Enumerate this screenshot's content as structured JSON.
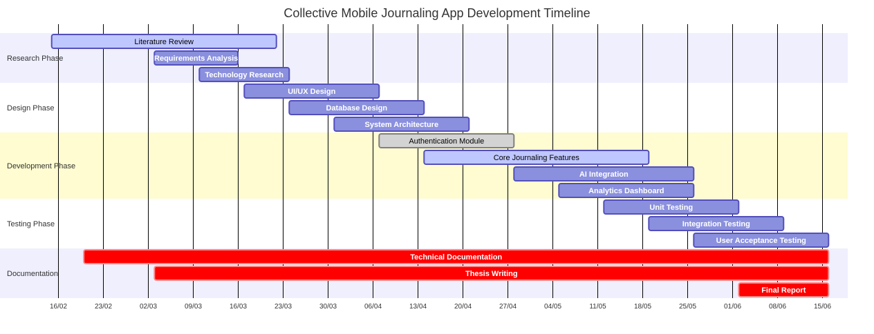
{
  "title": "Collective Mobile Journaling App Development Timeline",
  "chart_data": {
    "type": "gantt",
    "title": "Collective Mobile Journaling App Development Timeline",
    "x_ticks": [
      "16/02",
      "23/02",
      "02/03",
      "09/03",
      "16/03",
      "23/03",
      "30/03",
      "06/04",
      "13/04",
      "20/04",
      "27/04",
      "04/05",
      "11/05",
      "18/05",
      "25/05",
      "01/06",
      "08/06",
      "15/06"
    ],
    "sections": [
      {
        "name": "Research Phase",
        "tasks": [
          {
            "name": "Literature Review",
            "start": "15/02",
            "end": "22/03",
            "status": "done"
          },
          {
            "name": "Requirements Analysis",
            "start": "03/03",
            "end": "16/03",
            "status": "active"
          },
          {
            "name": "Technology Research",
            "start": "10/03",
            "end": "24/03",
            "status": "active"
          }
        ]
      },
      {
        "name": "Design Phase",
        "tasks": [
          {
            "name": "UI/UX Design",
            "start": "17/03",
            "end": "07/04",
            "status": "active"
          },
          {
            "name": "Database Design",
            "start": "24/03",
            "end": "14/04",
            "status": "active"
          },
          {
            "name": "System Architecture",
            "start": "31/03",
            "end": "21/04",
            "status": "active"
          }
        ]
      },
      {
        "name": "Development Phase",
        "tasks": [
          {
            "name": "Authentication Module",
            "start": "07/04",
            "end": "28/04",
            "status": "normal"
          },
          {
            "name": "Core Journaling Features",
            "start": "14/04",
            "end": "19/05",
            "status": "done"
          },
          {
            "name": "AI Integration",
            "start": "28/04",
            "end": "26/05",
            "status": "active"
          },
          {
            "name": "Analytics Dashboard",
            "start": "05/05",
            "end": "26/05",
            "status": "active"
          }
        ]
      },
      {
        "name": "Testing Phase",
        "tasks": [
          {
            "name": "Unit Testing",
            "start": "12/05",
            "end": "02/06",
            "status": "active"
          },
          {
            "name": "Integration Testing",
            "start": "19/05",
            "end": "09/06",
            "status": "active"
          },
          {
            "name": "User Acceptance Testing",
            "start": "26/05",
            "end": "16/06",
            "status": "active"
          }
        ]
      },
      {
        "name": "Documentation",
        "tasks": [
          {
            "name": "Technical Documentation",
            "start": "20/02",
            "end": "16/06",
            "status": "crit"
          },
          {
            "name": "Thesis Writing",
            "start": "03/03",
            "end": "16/06",
            "status": "crit"
          },
          {
            "name": "Final Report",
            "start": "02/06",
            "end": "16/06",
            "status": "crit"
          }
        ]
      }
    ]
  },
  "colors": {
    "section_band_a": "#efeffe",
    "section_band_b": "#ffffff",
    "section_band_dev": "#fefcd0",
    "grid": "#000000",
    "task_active_fill": "#8a90dd",
    "task_active_stroke": "#534fbc",
    "task_done_fill": "#bfc7ff",
    "task_done_stroke": "#534fbc",
    "task_normal_fill": "#d3d3d3",
    "task_normal_stroke": "#808080",
    "task_crit_fill": "#ff0000",
    "task_crit_stroke": "#ff8888",
    "label_light": "#ffffff",
    "label_dark": "#000000"
  }
}
